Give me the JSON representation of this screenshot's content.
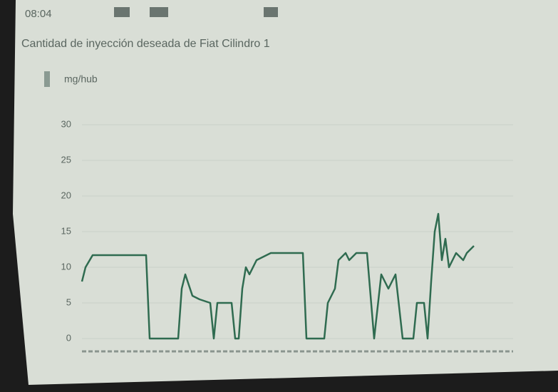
{
  "status_time": "08:04",
  "chart_data": {
    "type": "line",
    "title": "Cantidad de inyección deseada de Fiat Cilindro 1",
    "y_label": "mg/hub",
    "x": [
      0,
      1,
      3,
      18,
      19,
      27,
      28,
      29,
      31,
      33,
      36,
      37,
      38,
      42,
      43,
      44,
      45,
      46,
      47,
      49,
      51,
      53,
      62,
      63,
      68,
      69,
      71,
      72,
      74,
      75,
      77,
      80,
      82,
      84,
      86,
      88,
      90,
      93,
      94,
      96,
      97,
      98,
      99,
      100,
      101,
      102,
      103,
      105,
      107,
      108,
      110
    ],
    "series": [
      {
        "color": "#2f6b50",
        "values": [
          8,
          10,
          11.7,
          11.7,
          0,
          0,
          7,
          9,
          6,
          5.5,
          5,
          0,
          5,
          5,
          0,
          0,
          7,
          10,
          9,
          11,
          11.5,
          12,
          12,
          0,
          0,
          5,
          7,
          11,
          12,
          11,
          12,
          12,
          0,
          9,
          7,
          9,
          0,
          0,
          5,
          5,
          0,
          8,
          15,
          17.5,
          11,
          14,
          10,
          12,
          11,
          12,
          13
        ]
      }
    ],
    "xlim": [
      0,
      121
    ],
    "ylim": [
      0,
      30
    ],
    "yticks": [
      0,
      5,
      10,
      15,
      20,
      25,
      30
    ],
    "grid": true
  }
}
